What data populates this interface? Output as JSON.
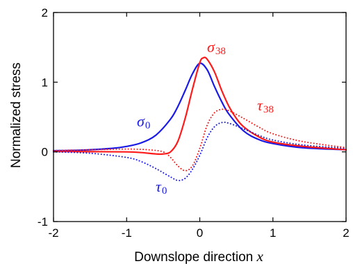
{
  "chart_data": {
    "type": "line",
    "xlabel": "Downslope direction",
    "xlabel_var": "x",
    "ylabel": "Normalized stress",
    "xlim": [
      -2,
      2
    ],
    "ylim": [
      -1,
      2
    ],
    "xticks": [
      -2,
      -1,
      0,
      1,
      2
    ],
    "yticks": [
      -1,
      0,
      1,
      2
    ],
    "xtick_labels": [
      "-2",
      "-1",
      "0",
      "1",
      "2"
    ],
    "ytick_labels": [
      "-1",
      "0",
      "1",
      "2"
    ],
    "grid": false,
    "annotations": [
      {
        "symbol": "σ",
        "subscript": "38",
        "color": "#ff1a1a",
        "near_series": "sigma_38"
      },
      {
        "symbol": "σ",
        "subscript": "0",
        "color": "#1a1ae6",
        "near_series": "sigma_0"
      },
      {
        "symbol": "τ",
        "subscript": "38",
        "color": "#ff1a1a",
        "near_series": "tau_38"
      },
      {
        "symbol": "τ",
        "subscript": "0",
        "color": "#1a1ae6",
        "near_series": "tau_0"
      }
    ],
    "series": [
      {
        "id": "sigma_0",
        "color": "#1a1ae6",
        "style": "solid",
        "x": [
          -2.0,
          -1.6,
          -1.2,
          -1.0,
          -0.8,
          -0.6,
          -0.4,
          -0.3,
          -0.2,
          -0.1,
          0.0,
          0.1,
          0.2,
          0.3,
          0.4,
          0.6,
          0.8,
          1.0,
          1.4,
          2.0
        ],
        "y": [
          0.016,
          0.026,
          0.05,
          0.078,
          0.13,
          0.24,
          0.47,
          0.65,
          0.88,
          1.12,
          1.27,
          1.18,
          0.94,
          0.72,
          0.54,
          0.3,
          0.18,
          0.12,
          0.06,
          0.03
        ]
      },
      {
        "id": "sigma_38",
        "color": "#ff1a1a",
        "style": "solid",
        "x": [
          -2.0,
          -1.5,
          -1.0,
          -0.8,
          -0.6,
          -0.5,
          -0.4,
          -0.3,
          -0.2,
          -0.1,
          0.0,
          0.05,
          0.1,
          0.2,
          0.3,
          0.4,
          0.5,
          0.6,
          0.8,
          1.0,
          1.4,
          2.0
        ],
        "y": [
          0.005,
          0.003,
          0.0,
          -0.01,
          -0.03,
          -0.03,
          0.0,
          0.15,
          0.48,
          0.9,
          1.28,
          1.35,
          1.33,
          1.15,
          0.88,
          0.65,
          0.48,
          0.36,
          0.22,
          0.14,
          0.08,
          0.03
        ]
      },
      {
        "id": "tau_0",
        "color": "#1a1ae6",
        "style": "dotted",
        "x": [
          -2.0,
          -1.5,
          -1.0,
          -0.8,
          -0.6,
          -0.4,
          -0.3,
          -0.2,
          -0.1,
          0.0,
          0.1,
          0.2,
          0.3,
          0.4,
          0.6,
          0.8,
          1.0,
          1.4,
          2.0
        ],
        "y": [
          0.0,
          -0.02,
          -0.08,
          -0.14,
          -0.24,
          -0.36,
          -0.41,
          -0.38,
          -0.25,
          -0.05,
          0.2,
          0.36,
          0.42,
          0.41,
          0.33,
          0.24,
          0.17,
          0.1,
          0.05
        ]
      },
      {
        "id": "tau_38",
        "color": "#ff1a1a",
        "style": "dotted",
        "x": [
          -2.0,
          -1.5,
          -1.0,
          -0.7,
          -0.5,
          -0.4,
          -0.3,
          -0.2,
          -0.1,
          0.0,
          0.1,
          0.2,
          0.3,
          0.4,
          0.6,
          0.8,
          1.0,
          1.4,
          2.0
        ],
        "y": [
          0.02,
          0.03,
          0.04,
          0.03,
          0.0,
          -0.08,
          -0.2,
          -0.27,
          -0.2,
          0.05,
          0.38,
          0.56,
          0.61,
          0.59,
          0.48,
          0.36,
          0.26,
          0.15,
          0.06
        ]
      }
    ]
  }
}
